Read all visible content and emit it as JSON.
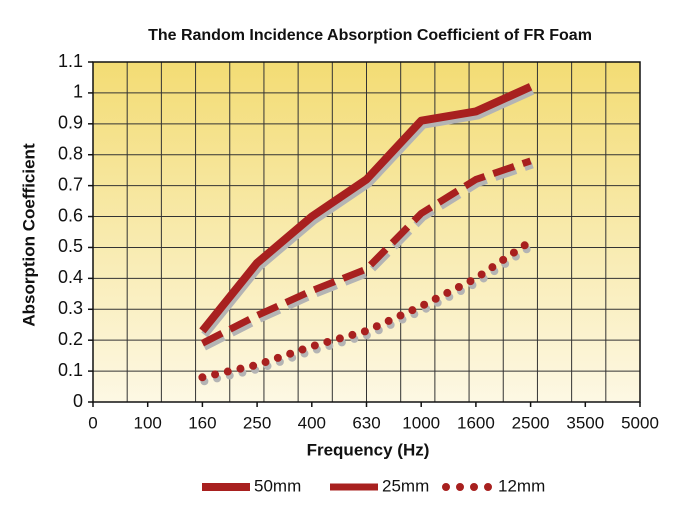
{
  "chart_data": {
    "type": "line",
    "title": "The Random Incidence Absorption Coefficient of FR Foam",
    "x_label": "Frequency (Hz)",
    "y_label": "Absorption Coefficient",
    "categories": [
      "0",
      "100",
      "160",
      "250",
      "400",
      "630",
      "1000",
      "1600",
      "2500",
      "3500",
      "5000"
    ],
    "series": [
      {
        "name": "50mm",
        "color": "#a8201f",
        "style": "solid",
        "values": [
          null,
          null,
          0.23,
          0.45,
          0.6,
          0.72,
          0.91,
          0.94,
          1.02,
          null,
          null
        ]
      },
      {
        "name": "25mm",
        "color": "#a8201f",
        "style": "dashed",
        "values": [
          null,
          null,
          0.19,
          0.28,
          0.36,
          0.43,
          0.61,
          0.72,
          0.78,
          null,
          null
        ]
      },
      {
        "name": "12mm",
        "color": "#a8201f",
        "style": "dotted",
        "values": [
          null,
          null,
          0.08,
          0.12,
          0.18,
          0.23,
          0.31,
          0.4,
          0.52,
          null,
          null
        ]
      }
    ],
    "ylim": [
      0,
      1.1
    ],
    "yticks": [
      0,
      0.1,
      0.2,
      0.3,
      0.4,
      0.5,
      0.6,
      0.7,
      0.8,
      0.9,
      1,
      1.1
    ],
    "grid": true
  }
}
